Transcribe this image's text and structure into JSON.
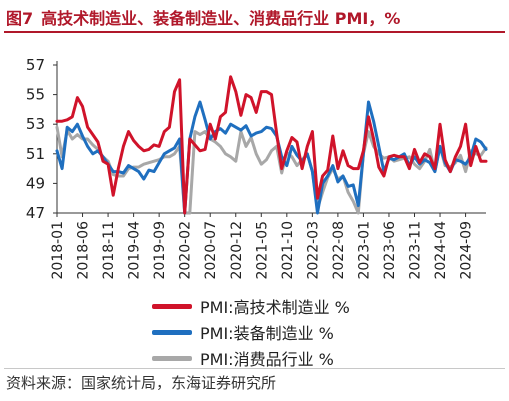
{
  "header": {
    "figure_number": "图7",
    "title": "高技术制造业、装备制造业、消费品行业 PMI，%"
  },
  "source": "资料来源：国家统计局，东海证券研究所",
  "chart_data": {
    "type": "line",
    "title": "高技术制造业、装备制造业、消费品行业 PMI，%",
    "xlabel": "",
    "ylabel": "",
    "ylim": [
      47,
      57
    ],
    "yticks": [
      47,
      49,
      51,
      53,
      55,
      57
    ],
    "grid": false,
    "legend_position": "bottom-center",
    "x_start": "2018-01",
    "x_tick_labels": [
      "2018-01",
      "2018-06",
      "2018-11",
      "2019-04",
      "2019-09",
      "2020-02",
      "2020-07",
      "2020-12",
      "2021-05",
      "2021-10",
      "2022-03",
      "2022-08",
      "2023-01",
      "2023-06",
      "2023-11",
      "2024-04",
      "2024-09"
    ],
    "x": [
      "2018-01",
      "2018-02",
      "2018-03",
      "2018-04",
      "2018-05",
      "2018-06",
      "2018-07",
      "2018-08",
      "2018-09",
      "2018-10",
      "2018-11",
      "2018-12",
      "2019-01",
      "2019-02",
      "2019-03",
      "2019-04",
      "2019-05",
      "2019-06",
      "2019-07",
      "2019-08",
      "2019-09",
      "2019-10",
      "2019-11",
      "2019-12",
      "2020-01",
      "2020-02",
      "2020-03",
      "2020-04",
      "2020-05",
      "2020-06",
      "2020-07",
      "2020-08",
      "2020-09",
      "2020-10",
      "2020-11",
      "2020-12",
      "2021-01",
      "2021-02",
      "2021-03",
      "2021-04",
      "2021-05",
      "2021-06",
      "2021-07",
      "2021-08",
      "2021-09",
      "2021-10",
      "2021-11",
      "2021-12",
      "2022-01",
      "2022-02",
      "2022-03",
      "2022-04",
      "2022-05",
      "2022-06",
      "2022-07",
      "2022-08",
      "2022-09",
      "2022-10",
      "2022-11",
      "2022-12",
      "2023-01",
      "2023-02",
      "2023-03",
      "2023-04",
      "2023-05",
      "2023-06",
      "2023-07",
      "2023-08",
      "2023-09",
      "2023-10",
      "2023-11",
      "2023-12",
      "2024-01",
      "2024-02",
      "2024-03",
      "2024-04",
      "2024-05",
      "2024-06",
      "2024-07",
      "2024-08",
      "2024-09",
      "2024-10",
      "2024-11",
      "2024-12",
      "2025-01"
    ],
    "series": [
      {
        "name": "PMI:高技术制造业 %",
        "color": "#d0132a",
        "values": [
          53.2,
          53.2,
          53.3,
          53.5,
          54.8,
          54.2,
          52.8,
          52.3,
          51.8,
          50.5,
          50.3,
          48.2,
          50.0,
          51.5,
          52.5,
          51.9,
          51.5,
          51.2,
          51.3,
          51.6,
          51.5,
          52.5,
          52.8,
          55.2,
          56.0,
          45.0,
          52.0,
          51.6,
          51.2,
          51.3,
          53.0,
          52.0,
          53.5,
          53.8,
          56.2,
          55.2,
          53.6,
          55.0,
          54.8,
          53.8,
          55.2,
          55.2,
          55.0,
          52.4,
          50.0,
          51.2,
          52.1,
          51.8,
          50.0,
          51.5,
          52.5,
          48.0,
          49.5,
          49.9,
          52.2,
          50.0,
          51.2,
          50.2,
          50.0,
          50.0,
          51.2,
          53.5,
          52.0,
          50.1,
          49.5,
          50.8,
          50.9,
          50.8,
          50.8,
          50.0,
          51.3,
          50.4,
          51.0,
          50.8,
          50.0,
          53.0,
          50.6,
          49.8,
          50.8,
          51.5,
          53.0,
          50.2,
          51.5,
          50.5,
          50.5
        ]
      },
      {
        "name": "PMI:装备制造业 %",
        "color": "#1f6fbf",
        "values": [
          51.2,
          50.0,
          52.8,
          52.5,
          53.0,
          52.2,
          51.5,
          51.0,
          51.2,
          50.8,
          50.3,
          49.8,
          49.8,
          49.7,
          50.2,
          50.0,
          49.8,
          49.3,
          49.9,
          49.8,
          50.4,
          51.0,
          51.2,
          51.4,
          52.0,
          44.0,
          52.0,
          53.5,
          54.5,
          53.3,
          52.0,
          52.5,
          52.7,
          52.4,
          53.0,
          52.8,
          52.6,
          52.9,
          52.2,
          52.4,
          52.5,
          52.8,
          52.7,
          52.2,
          50.8,
          50.2,
          51.5,
          50.9,
          50.5,
          51.0,
          49.8,
          46.5,
          49.0,
          49.5,
          50.2,
          49.1,
          49.5,
          48.8,
          48.9,
          47.5,
          51.0,
          54.5,
          53.2,
          51.5,
          49.8,
          50.7,
          50.6,
          50.8,
          51.0,
          50.2,
          50.8,
          50.3,
          50.6,
          50.4,
          49.8,
          51.5,
          50.4,
          49.8,
          50.6,
          50.5,
          50.3,
          50.8,
          52.0,
          51.8,
          51.3
        ]
      },
      {
        "name": "PMI:消费品行业 %",
        "color": "#a8a8a8",
        "values": [
          52.8,
          50.8,
          52.6,
          52.0,
          52.3,
          52.0,
          52.0,
          51.6,
          51.3,
          50.8,
          50.5,
          49.6,
          49.5,
          49.5,
          50.0,
          50.1,
          50.1,
          50.3,
          50.4,
          50.5,
          50.6,
          50.8,
          50.8,
          51.0,
          51.5,
          45.0,
          47.0,
          52.5,
          52.3,
          52.5,
          52.0,
          51.8,
          51.5,
          51.0,
          50.8,
          50.5,
          52.5,
          51.5,
          52.1,
          51.0,
          50.3,
          50.6,
          51.2,
          51.5,
          49.7,
          51.1,
          50.8,
          50.2,
          50.6,
          51.0,
          49.8,
          47.3,
          48.4,
          49.4,
          50.0,
          49.3,
          49.5,
          48.4,
          47.8,
          46.5,
          51.0,
          52.5,
          51.5,
          51.0,
          50.7,
          50.8,
          50.5,
          50.6,
          50.7,
          50.8,
          50.3,
          50.0,
          50.5,
          51.3,
          49.8,
          51.5,
          50.2,
          50.1,
          50.4,
          50.9,
          49.8,
          51.2,
          51.0,
          50.9,
          51.4
        ]
      }
    ]
  }
}
